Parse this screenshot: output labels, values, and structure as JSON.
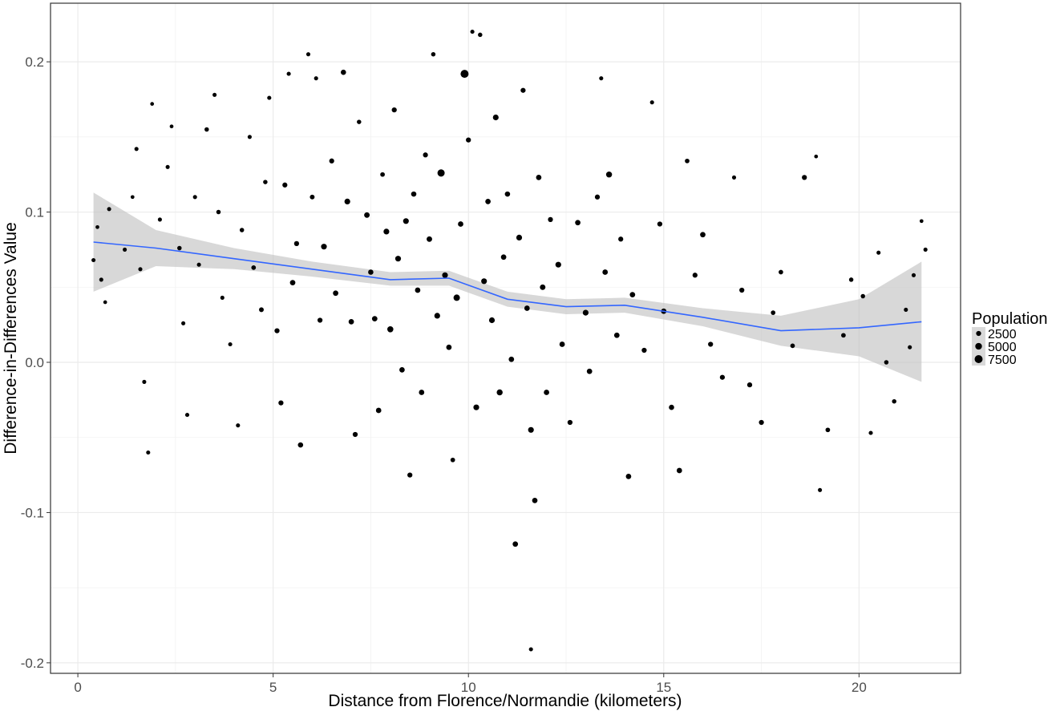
{
  "chart_data": {
    "type": "scatter",
    "xlabel": "Distance from Florence/Normandie (kilometers)",
    "ylabel": "Difference-in-Differences Value",
    "xlim": [
      -0.7,
      22.6
    ],
    "ylim": [
      -0.207,
      0.239
    ],
    "x_ticks": [
      0,
      5,
      10,
      15,
      20
    ],
    "y_ticks": [
      -0.2,
      -0.1,
      0.0,
      0.1,
      0.2
    ],
    "y_tick_labels": [
      "-0.2",
      "-0.1",
      "0.0",
      "0.1",
      "0.2"
    ],
    "grid": true,
    "legend_position": "right",
    "point_color": "#000000",
    "smooth_color": "#3366ff",
    "ribbon_color": "#bebebe",
    "legend": {
      "title": "Population",
      "entries": [
        {
          "label": "2500",
          "value": 2500
        },
        {
          "label": "5000",
          "value": 5000
        },
        {
          "label": "7500",
          "value": 7500
        }
      ]
    },
    "smooth": {
      "x": [
        0.4,
        2,
        4,
        6,
        8,
        9.5,
        11,
        12.5,
        14,
        16,
        18,
        20,
        21.6
      ],
      "y": [
        0.08,
        0.076,
        0.069,
        0.062,
        0.055,
        0.056,
        0.042,
        0.037,
        0.038,
        0.03,
        0.021,
        0.023,
        0.027
      ],
      "lower": [
        0.047,
        0.064,
        0.062,
        0.057,
        0.051,
        0.051,
        0.037,
        0.032,
        0.033,
        0.024,
        0.011,
        0.004,
        -0.013
      ],
      "upper": [
        0.113,
        0.088,
        0.076,
        0.067,
        0.06,
        0.061,
        0.047,
        0.042,
        0.043,
        0.036,
        0.031,
        0.042,
        0.067
      ]
    },
    "points": [
      [
        0.4,
        0.068,
        1500
      ],
      [
        0.5,
        0.09,
        1200
      ],
      [
        0.6,
        0.055,
        1500
      ],
      [
        0.7,
        0.04,
        1200
      ],
      [
        0.8,
        0.102,
        1500
      ],
      [
        1.2,
        0.075,
        1500
      ],
      [
        1.4,
        0.11,
        1200
      ],
      [
        1.5,
        0.142,
        1500
      ],
      [
        1.6,
        0.062,
        1500
      ],
      [
        1.7,
        -0.013,
        1500
      ],
      [
        1.8,
        -0.06,
        1500
      ],
      [
        1.9,
        0.172,
        1200
      ],
      [
        2.1,
        0.095,
        1500
      ],
      [
        2.3,
        0.13,
        1500
      ],
      [
        2.4,
        0.157,
        1200
      ],
      [
        2.6,
        0.076,
        1800
      ],
      [
        2.7,
        0.026,
        1500
      ],
      [
        2.8,
        -0.035,
        1500
      ],
      [
        3.0,
        0.11,
        1500
      ],
      [
        3.1,
        0.065,
        1500
      ],
      [
        3.3,
        0.155,
        1800
      ],
      [
        3.5,
        0.178,
        1500
      ],
      [
        3.6,
        0.1,
        1800
      ],
      [
        3.7,
        0.043,
        1500
      ],
      [
        3.9,
        0.012,
        1500
      ],
      [
        4.1,
        -0.042,
        1500
      ],
      [
        4.2,
        0.088,
        1800
      ],
      [
        4.4,
        0.15,
        1500
      ],
      [
        4.5,
        0.063,
        2000
      ],
      [
        4.7,
        0.035,
        2200
      ],
      [
        4.8,
        0.12,
        1800
      ],
      [
        4.9,
        0.176,
        1500
      ],
      [
        5.1,
        0.021,
        2500
      ],
      [
        5.2,
        -0.027,
        2500
      ],
      [
        5.3,
        0.118,
        2500
      ],
      [
        5.4,
        0.192,
        1500
      ],
      [
        5.5,
        0.053,
        3000
      ],
      [
        5.6,
        0.079,
        2500
      ],
      [
        5.7,
        -0.055,
        2800
      ],
      [
        5.9,
        0.205,
        1500
      ],
      [
        6.0,
        0.11,
        2200
      ],
      [
        6.1,
        0.189,
        1500
      ],
      [
        6.2,
        0.028,
        2500
      ],
      [
        6.3,
        0.077,
        3500
      ],
      [
        6.5,
        0.134,
        2500
      ],
      [
        6.6,
        0.046,
        3000
      ],
      [
        6.8,
        0.193,
        2800
      ],
      [
        6.9,
        0.107,
        3500
      ],
      [
        7.0,
        0.027,
        3000
      ],
      [
        7.1,
        -0.048,
        2500
      ],
      [
        7.2,
        0.16,
        1800
      ],
      [
        7.4,
        0.098,
        3200
      ],
      [
        7.5,
        0.06,
        2800
      ],
      [
        7.6,
        0.029,
        3000
      ],
      [
        7.7,
        -0.032,
        3000
      ],
      [
        7.8,
        0.125,
        2000
      ],
      [
        7.9,
        0.087,
        3500
      ],
      [
        8.0,
        0.022,
        4000
      ],
      [
        8.1,
        0.168,
        2500
      ],
      [
        8.2,
        0.069,
        3500
      ],
      [
        8.3,
        -0.005,
        3000
      ],
      [
        8.4,
        0.094,
        3500
      ],
      [
        8.5,
        -0.075,
        2500
      ],
      [
        8.6,
        0.112,
        2800
      ],
      [
        8.7,
        0.048,
        3000
      ],
      [
        8.8,
        -0.02,
        3000
      ],
      [
        8.9,
        0.138,
        2500
      ],
      [
        9.0,
        0.082,
        3200
      ],
      [
        9.1,
        0.205,
        1800
      ],
      [
        9.2,
        0.031,
        3500
      ],
      [
        9.3,
        0.126,
        6000
      ],
      [
        9.4,
        0.058,
        3500
      ],
      [
        9.5,
        0.01,
        3000
      ],
      [
        9.6,
        -0.065,
        2000
      ],
      [
        9.7,
        0.043,
        4500
      ],
      [
        9.8,
        0.092,
        3000
      ],
      [
        9.9,
        0.192,
        7500
      ],
      [
        10.0,
        0.148,
        2500
      ],
      [
        10.1,
        0.22,
        1500
      ],
      [
        10.2,
        -0.03,
        3500
      ],
      [
        10.3,
        0.218,
        1800
      ],
      [
        10.4,
        0.054,
        3500
      ],
      [
        10.5,
        0.107,
        3000
      ],
      [
        10.6,
        0.028,
        3500
      ],
      [
        10.7,
        0.163,
        3500
      ],
      [
        10.8,
        -0.02,
        3800
      ],
      [
        10.9,
        0.07,
        3000
      ],
      [
        11.0,
        0.112,
        2800
      ],
      [
        11.1,
        0.002,
        3000
      ],
      [
        11.2,
        -0.121,
        3000
      ],
      [
        11.3,
        0.083,
        3500
      ],
      [
        11.4,
        0.181,
        2500
      ],
      [
        11.5,
        0.036,
        3000
      ],
      [
        11.6,
        -0.045,
        3500
      ],
      [
        11.7,
        -0.092,
        3000
      ],
      [
        11.6,
        -0.191,
        1500
      ],
      [
        11.8,
        0.123,
        3000
      ],
      [
        11.9,
        0.05,
        3200
      ],
      [
        12.0,
        -0.02,
        3000
      ],
      [
        12.1,
        0.095,
        2500
      ],
      [
        12.3,
        0.065,
        3500
      ],
      [
        12.4,
        0.012,
        3000
      ],
      [
        12.6,
        -0.04,
        2500
      ],
      [
        12.8,
        0.093,
        3000
      ],
      [
        13.0,
        0.033,
        3500
      ],
      [
        13.1,
        -0.006,
        3000
      ],
      [
        13.3,
        0.11,
        2500
      ],
      [
        13.4,
        0.189,
        1500
      ],
      [
        13.5,
        0.06,
        3000
      ],
      [
        13.6,
        0.125,
        3800
      ],
      [
        13.8,
        0.018,
        3000
      ],
      [
        13.9,
        0.082,
        2500
      ],
      [
        14.1,
        -0.076,
        3000
      ],
      [
        14.2,
        0.045,
        3000
      ],
      [
        14.5,
        0.008,
        2500
      ],
      [
        14.7,
        0.173,
        1500
      ],
      [
        14.9,
        0.092,
        2500
      ],
      [
        15.0,
        0.034,
        3000
      ],
      [
        15.2,
        -0.03,
        2800
      ],
      [
        15.4,
        -0.072,
        3000
      ],
      [
        15.6,
        0.134,
        2000
      ],
      [
        15.8,
        0.058,
        2500
      ],
      [
        16.0,
        0.085,
        3000
      ],
      [
        16.2,
        0.012,
        2500
      ],
      [
        16.5,
        -0.01,
        2500
      ],
      [
        16.8,
        0.123,
        1500
      ],
      [
        17.0,
        0.048,
        2500
      ],
      [
        17.2,
        -0.015,
        2500
      ],
      [
        17.5,
        -0.04,
        2500
      ],
      [
        17.8,
        0.033,
        2000
      ],
      [
        18.0,
        0.06,
        2000
      ],
      [
        18.3,
        0.011,
        2000
      ],
      [
        18.6,
        0.123,
        2500
      ],
      [
        18.9,
        0.137,
        1200
      ],
      [
        19.0,
        -0.085,
        1500
      ],
      [
        19.2,
        -0.045,
        2000
      ],
      [
        19.6,
        0.018,
        2000
      ],
      [
        19.8,
        0.055,
        1800
      ],
      [
        20.1,
        0.044,
        1800
      ],
      [
        20.3,
        -0.047,
        1500
      ],
      [
        20.5,
        0.073,
        1500
      ],
      [
        20.7,
        0.0,
        1800
      ],
      [
        20.9,
        -0.026,
        1800
      ],
      [
        21.2,
        0.035,
        1500
      ],
      [
        21.4,
        0.058,
        1500
      ],
      [
        21.6,
        0.094,
        1200
      ],
      [
        21.7,
        0.075,
        1500
      ],
      [
        21.3,
        0.01,
        1500
      ]
    ]
  }
}
